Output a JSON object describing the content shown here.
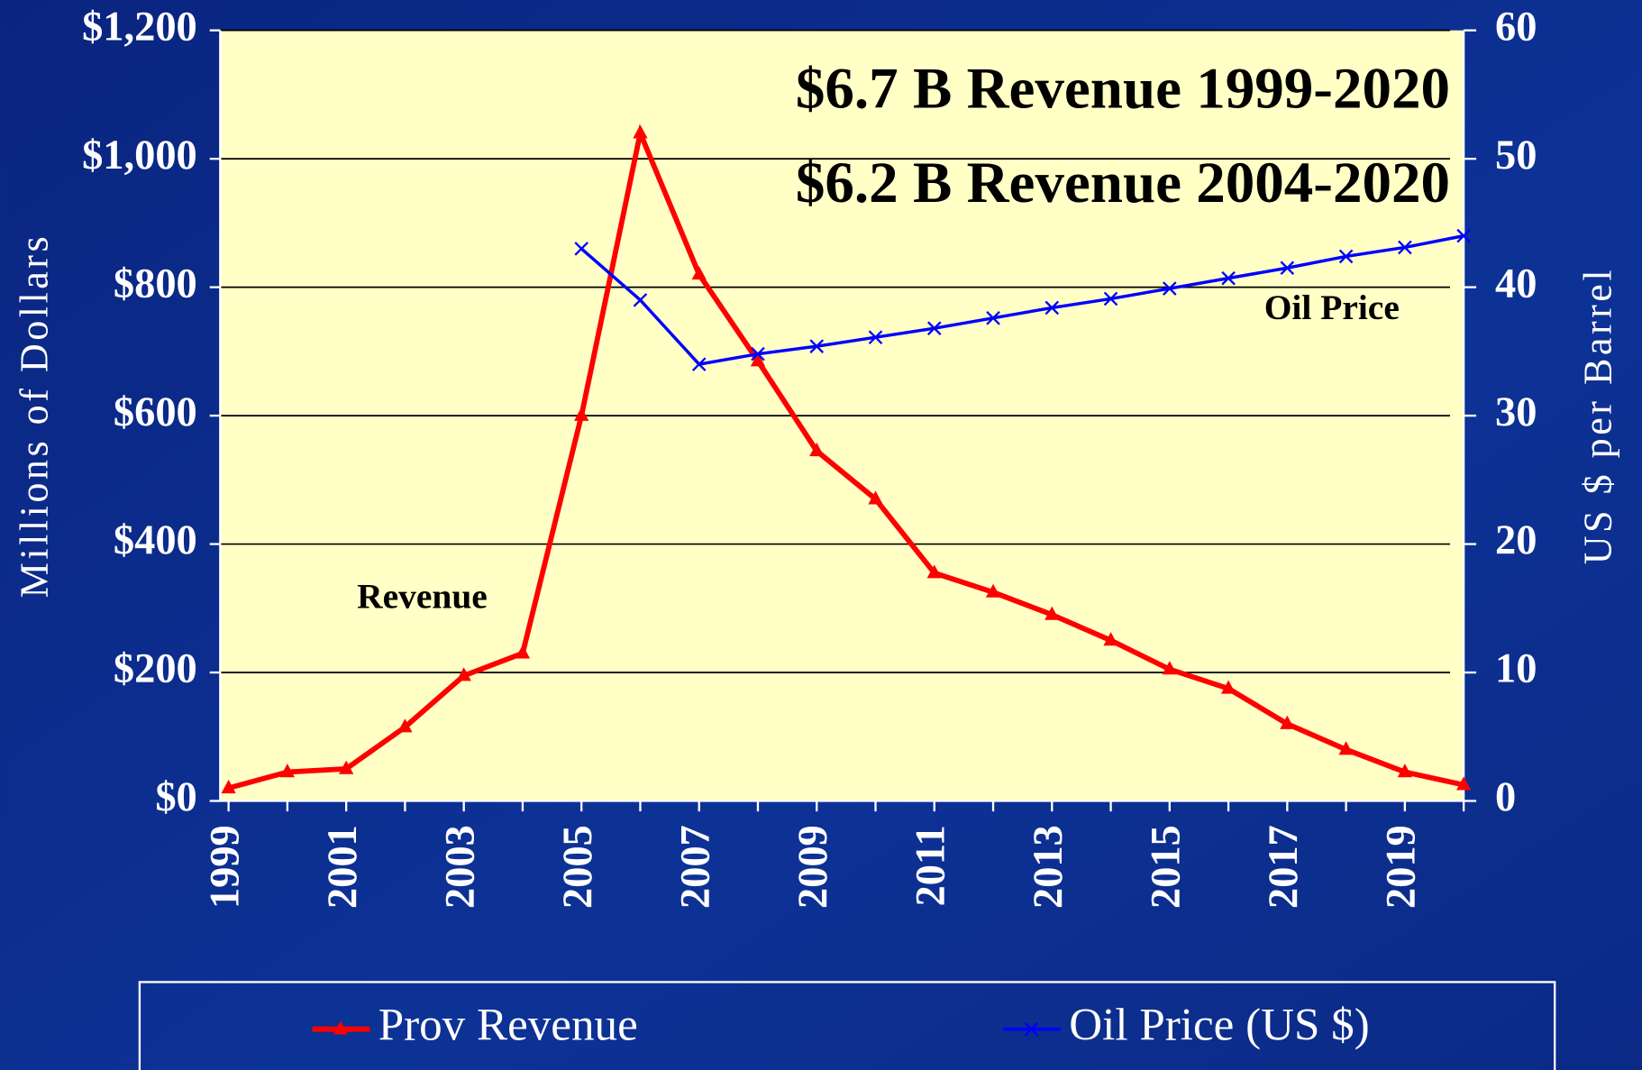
{
  "chart_data": {
    "type": "line",
    "annotations": [
      "$6.7 B Revenue 1999-2020",
      "$6.2 B Revenue 2004-2020",
      "Revenue",
      "Oil Price"
    ],
    "ylabel": "Millions of Dollars",
    "y2label": "US $ per Barrel",
    "x": [
      1999,
      2000,
      2001,
      2002,
      2003,
      2004,
      2005,
      2006,
      2007,
      2008,
      2009,
      2010,
      2011,
      2012,
      2013,
      2014,
      2015,
      2016,
      2017,
      2018,
      2019,
      2020
    ],
    "xlim": [
      1999,
      2020
    ],
    "xticks": [
      1999,
      2001,
      2003,
      2005,
      2007,
      2009,
      2011,
      2013,
      2015,
      2017,
      2019
    ],
    "ylim": [
      0,
      1200
    ],
    "yticks": [
      {
        "value": 0,
        "label": "$0"
      },
      {
        "value": 200,
        "label": "$200"
      },
      {
        "value": 400,
        "label": "$400"
      },
      {
        "value": 600,
        "label": "$600"
      },
      {
        "value": 800,
        "label": "$800"
      },
      {
        "value": 1000,
        "label": "$1,000"
      },
      {
        "value": 1200,
        "label": "$1,200"
      }
    ],
    "y2lim": [
      0,
      60
    ],
    "y2ticks": [
      0,
      10,
      20,
      30,
      40,
      50,
      60
    ],
    "grid": true,
    "legend": "bottom",
    "series": [
      {
        "name": "Prov Revenue",
        "color": "#ff0000",
        "marker": "triangle",
        "values": [
          20,
          45,
          50,
          115,
          195,
          230,
          600,
          1040,
          820,
          685,
          545,
          470,
          355,
          325,
          290,
          250,
          205,
          175,
          120,
          80,
          45,
          25
        ]
      },
      {
        "name": "Oil Price (US $)",
        "color": "#0000ff",
        "marker": "x",
        "axis": "y2",
        "values": [
          null,
          null,
          null,
          null,
          null,
          null,
          43.0,
          39.0,
          34.0,
          34.8,
          35.4,
          36.1,
          36.8,
          37.6,
          38.4,
          39.1,
          39.9,
          40.7,
          41.5,
          42.4,
          43.1,
          44.0
        ]
      }
    ]
  }
}
